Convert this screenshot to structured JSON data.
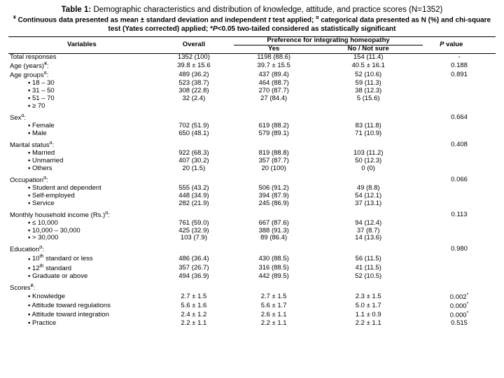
{
  "title_bold": "Table 1:",
  "title_rest": " Demographic characteristics and distribution of knowledge, attitude, and practice scores (N=1352)",
  "caption_parts": {
    "a": "¥",
    "b": " Continuous data presented as mean ± standard deviation and independent ",
    "c": "t",
    "d": " test applied; ",
    "e": "α",
    "f": " categorical data presented as N (%) and chi-square test (Yates corrected) applied; *",
    "g": "P",
    "h": "<0.05 two-tailed considered as statistically significant"
  },
  "headers": {
    "variables": "Variables",
    "overall": "Overall",
    "preference": "Preference for integrating homeopathy",
    "yes": "Yes",
    "no": "No / Not sure",
    "pval": "P",
    "pval_suffix": " value"
  },
  "rows_main": [
    {
      "label": "Total responses",
      "overall": "1352 (100)",
      "yes": "1198 (88.6)",
      "no": "154 (11.4)",
      "p": "-"
    },
    {
      "label": "Age (years)",
      "sup": "¥",
      "suffix": ":",
      "overall": "39.8 ± 15.6",
      "yes": "39.7 ± 15.5",
      "no": "40.5 ± 16.1",
      "p": "0.188"
    },
    {
      "label": "Age groups",
      "sup": "α",
      "suffix": ":",
      "overall": "489 (36.2)",
      "yes": "437 (89.4)",
      "no": "52 (10.6)",
      "p": "0.891"
    },
    {
      "indent": true,
      "label": "18 – 30",
      "overall": "523 (38.7)",
      "yes": "464 (88.7)",
      "no": "59 (11.3)",
      "p": ""
    },
    {
      "indent": true,
      "label": "31 – 50",
      "overall": "308 (22.8)",
      "yes": "270 (87.7)",
      "no": "38 (12.3)",
      "p": ""
    },
    {
      "indent": true,
      "label": "51 – 70",
      "overall": "32 (2.4)",
      "yes": "27 (84.4)",
      "no": "5 (15.6)",
      "p": ""
    },
    {
      "indent": true,
      "label": "≥ 70",
      "overall": "",
      "yes": "",
      "no": "",
      "p": ""
    }
  ],
  "sections": [
    {
      "head": "Sex",
      "sup": "α",
      "p": "0.664",
      "items": [
        {
          "label": "Female",
          "overall": "702 (51.9)",
          "yes": "619 (88.2)",
          "no": "83 (11.8)"
        },
        {
          "label": "Male",
          "overall": "650 (48.1)",
          "yes": "579 (89.1)",
          "no": "71 (10.9)"
        }
      ]
    },
    {
      "head": "Marital status",
      "sup": "α",
      "p": "0.408",
      "items": [
        {
          "label": "Married",
          "overall": "922 (68.3)",
          "yes": "819 (88.8)",
          "no": "103 (11.2)"
        },
        {
          "label": "Unmarried",
          "overall": "407 (30.2)",
          "yes": "357 (87.7)",
          "no": "50 (12.3)"
        },
        {
          "label": "Others",
          "overall": "20 (1.5)",
          "yes": "20 (100)",
          "no": "0 (0)"
        }
      ]
    },
    {
      "head": "Occupation",
      "sup": "α",
      "p": "0.066",
      "items": [
        {
          "label": "Student and dependent",
          "overall": "555 (43.2)",
          "yes": "506 (91.2)",
          "no": "49 (8.8)"
        },
        {
          "label": "Self-employed",
          "overall": "448 (34.9)",
          "yes": "394 (87.9)",
          "no": "54 (12.1)"
        },
        {
          "label": "Service",
          "overall": "282 (21.9)",
          "yes": "245 (86.9)",
          "no": "37 (13.1)"
        }
      ]
    },
    {
      "head": "Monthly household income (Rs.)",
      "sup": "α",
      "p": "0.113",
      "items": [
        {
          "label": "≤ 10,000",
          "overall": "761 (59.0)",
          "yes": "667 (87.6)",
          "no": "94 (12.4)"
        },
        {
          "label": "10,000 – 30,000",
          "overall": "425 (32.9)",
          "yes": "388 (91.3)",
          "no": "37 (8.7)"
        },
        {
          "label": "> 30,000",
          "overall": "103 (7.9)",
          "yes": "89 (86.4)",
          "no": "14 (13.6)"
        }
      ]
    },
    {
      "head": "Education",
      "sup": "α",
      "p": "0.980",
      "items": [
        {
          "label": "10",
          "supLabel": "th",
          "labelSuffix": " standard or less",
          "overall": "486 (36.4)",
          "yes": "430 (88.5)",
          "no": "56 (11.5)"
        },
        {
          "label": "12",
          "supLabel": "th",
          "labelSuffix": " standard",
          "overall": "357 (26.7)",
          "yes": "316 (88.5)",
          "no": "41 (11.5)"
        },
        {
          "label": "Graduate or above",
          "overall": "494 (36.9)",
          "yes": "442 (89.5)",
          "no": "52 (10.5)"
        }
      ]
    },
    {
      "head": "Scores",
      "sup": "¥",
      "p": "",
      "items": [
        {
          "label": "Knowledge",
          "overall": "2.7 ± 1.5",
          "yes": "2.7 ± 1.5",
          "no": "2.3 ± 1.5",
          "p": "0.002",
          "pstar": "*"
        },
        {
          "label": "Attitude toward regulations",
          "overall": "5.6 ± 1.6",
          "yes": "5.6 ± 1.7",
          "no": "5.0 ± 1.7",
          "p": "0.000",
          "pstar": "*"
        },
        {
          "label": "Attitude toward integration",
          "overall": "2.4 ± 1.2",
          "yes": "2.6 ± 1.1",
          "no": "1.1 ± 0.9",
          "p": "0.000",
          "pstar": "*"
        },
        {
          "label": "Practice",
          "overall": "2.2 ± 1.1",
          "yes": "2.2 ± 1.1",
          "no": "2.2 ± 1.1",
          "p": "0.515"
        }
      ]
    }
  ]
}
